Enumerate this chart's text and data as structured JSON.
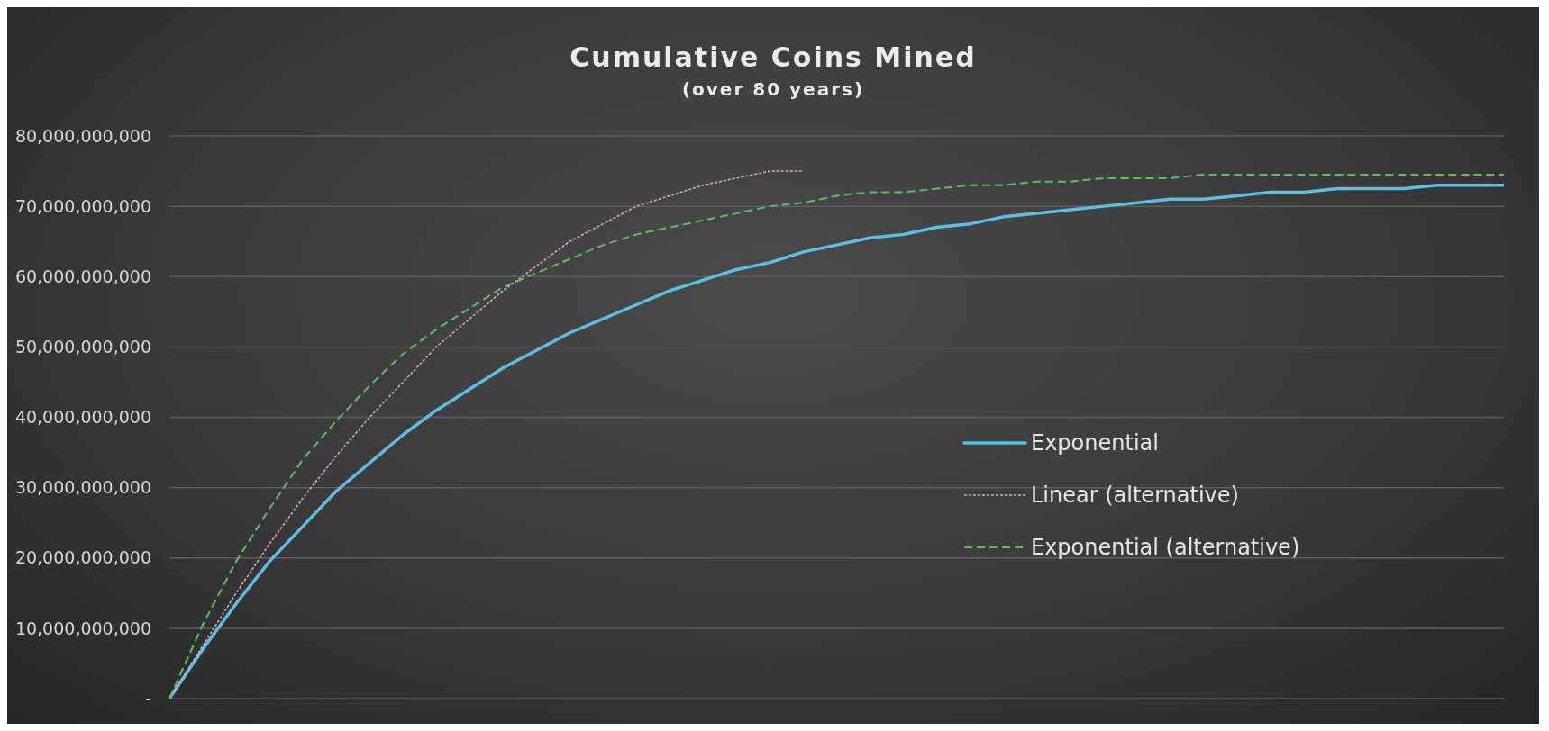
{
  "chart_data": {
    "type": "line",
    "title": "Cumulative Coins Mined",
    "subtitle": "(over 80 years)",
    "categories": [
      null,
      null,
      null,
      null,
      null,
      null,
      null,
      null,
      null,
      null,
      null,
      null,
      null,
      null,
      null,
      null,
      null,
      null,
      null,
      null,
      null,
      null,
      null,
      null,
      null,
      null,
      null,
      null,
      null,
      null,
      null,
      null,
      null,
      null,
      null,
      null,
      null,
      null,
      null,
      null,
      null
    ],
    "series": [
      {
        "name": "Exponential",
        "color": "#5bbfe8",
        "line_style": "solid",
        "values": [
          0,
          7000000000,
          13500000000,
          19500000000,
          24500000000,
          29500000000,
          33500000000,
          37500000000,
          41000000000,
          44000000000,
          47000000000,
          49500000000,
          52000000000,
          54000000000,
          56000000000,
          58000000000,
          59500000000,
          61000000000,
          62000000000,
          63500000000,
          64500000000,
          65500000000,
          66000000000,
          67000000000,
          67500000000,
          68500000000,
          69000000000,
          69500000000,
          70000000000,
          70500000000,
          71000000000,
          71000000000,
          71500000000,
          72000000000,
          72000000000,
          72500000000,
          72500000000,
          72500000000,
          73000000000,
          73000000000,
          73000000000
        ]
      },
      {
        "name": "Linear (alternative)",
        "color": "#d9a6d6",
        "line_style": "dotted",
        "values": [
          0,
          7500000000,
          15000000000,
          22000000000,
          28500000000,
          34500000000,
          40000000000,
          45000000000,
          50000000000,
          54000000000,
          58000000000,
          61500000000,
          65000000000,
          67500000000,
          70000000000,
          71500000000,
          73000000000,
          74000000000,
          75000000000,
          75000000000,
          null,
          null,
          null,
          null,
          null,
          null,
          null,
          null,
          null,
          null,
          null,
          null,
          null,
          null,
          null,
          null,
          null,
          null,
          null,
          null,
          null
        ]
      },
      {
        "name": "Exponential (alternative)",
        "color": "#5ac25a",
        "line_style": "dashed",
        "values": [
          0,
          10500000000,
          19500000000,
          27000000000,
          34000000000,
          39500000000,
          44500000000,
          49000000000,
          52500000000,
          55500000000,
          58500000000,
          60500000000,
          62500000000,
          64500000000,
          66000000000,
          67000000000,
          68000000000,
          69000000000,
          70000000000,
          70500000000,
          71500000000,
          72000000000,
          72000000000,
          72500000000,
          73000000000,
          73000000000,
          73500000000,
          73500000000,
          74000000000,
          74000000000,
          74000000000,
          74500000000,
          74500000000,
          74500000000,
          74500000000,
          74500000000,
          74500000000,
          74500000000,
          74500000000,
          74500000000,
          74500000000
        ]
      }
    ],
    "ylim": [
      0,
      80000000000
    ],
    "yticks": [
      {
        "value": 0,
        "label": "-"
      },
      {
        "value": 10000000000,
        "label": "10,000,000,000"
      },
      {
        "value": 20000000000,
        "label": "20,000,000,000"
      },
      {
        "value": 30000000000,
        "label": "30,000,000,000"
      },
      {
        "value": 40000000000,
        "label": "40,000,000,000"
      },
      {
        "value": 50000000000,
        "label": "50,000,000,000"
      },
      {
        "value": 60000000000,
        "label": "60,000,000,000"
      },
      {
        "value": 70000000000,
        "label": "70,000,000,000"
      },
      {
        "value": 80000000000,
        "label": "80,000,000,000"
      }
    ],
    "grid": "y",
    "legend": "right",
    "marker": "none",
    "tick_labels": "y"
  }
}
